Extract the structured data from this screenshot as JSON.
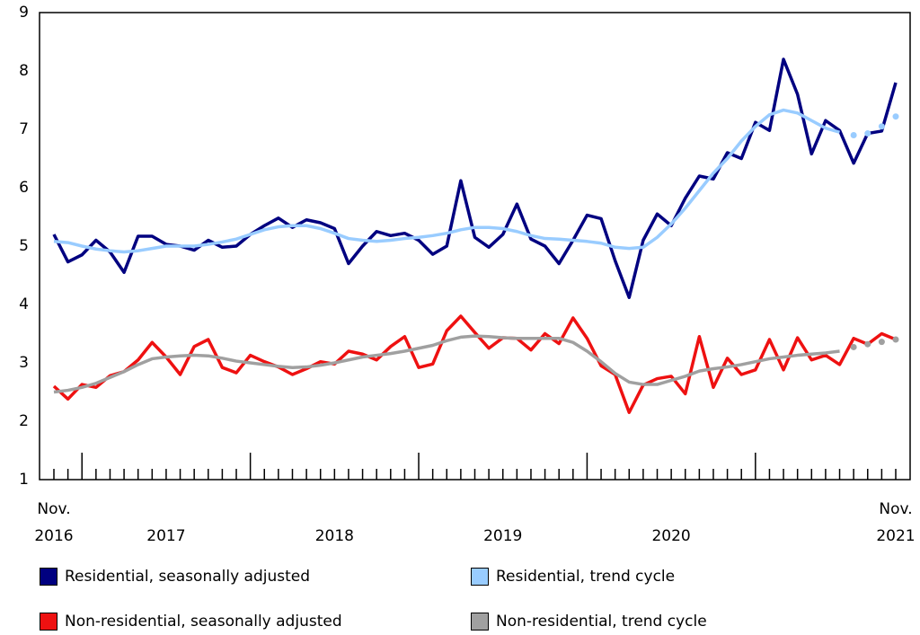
{
  "chart_data": {
    "type": "line",
    "categories": [
      "Nov.\n2016",
      null,
      null,
      null,
      null,
      null,
      null,
      null,
      "2017",
      null,
      null,
      null,
      null,
      null,
      null,
      null,
      null,
      null,
      null,
      null,
      "2018",
      null,
      null,
      null,
      null,
      null,
      null,
      null,
      null,
      null,
      null,
      null,
      "2019",
      null,
      null,
      null,
      null,
      null,
      null,
      null,
      null,
      null,
      null,
      null,
      "2020",
      null,
      null,
      null,
      null,
      null,
      null,
      null,
      null,
      null,
      null,
      null,
      null,
      null,
      null,
      null,
      "Nov.\n2021"
    ],
    "ylim": [
      1,
      9
    ],
    "yticks": [
      1,
      2,
      3,
      4,
      5,
      6,
      7,
      8,
      9
    ],
    "grid": false,
    "legend": "bottom",
    "series": [
      {
        "name": "Residential, seasonally adjusted",
        "color": "#000080",
        "values": [
          5.2,
          4.73,
          4.85,
          5.1,
          4.9,
          4.55,
          5.17,
          5.17,
          5.03,
          5.0,
          4.93,
          5.1,
          4.98,
          5.0,
          5.2,
          5.35,
          5.48,
          5.32,
          5.45,
          5.4,
          5.3,
          4.7,
          5.0,
          5.25,
          5.18,
          5.22,
          5.1,
          4.86,
          5.0,
          6.12,
          5.15,
          4.98,
          5.2,
          5.72,
          5.12,
          5.0,
          4.7,
          5.1,
          5.53,
          5.47,
          4.75,
          4.12,
          5.1,
          5.55,
          5.35,
          5.82,
          6.2,
          6.15,
          6.6,
          6.5,
          7.12,
          6.98,
          8.2,
          7.6,
          6.58,
          7.15,
          6.98,
          6.42,
          6.93,
          6.97,
          7.8
        ]
      },
      {
        "name": "Residential, trend cycle",
        "color": "#99ccff",
        "dotted_from": 57,
        "values": [
          5.08,
          5.06,
          5.0,
          4.95,
          4.92,
          4.9,
          4.92,
          4.96,
          5.0,
          5.0,
          5.0,
          5.03,
          5.07,
          5.12,
          5.2,
          5.28,
          5.33,
          5.35,
          5.35,
          5.3,
          5.22,
          5.13,
          5.1,
          5.08,
          5.1,
          5.13,
          5.15,
          5.18,
          5.22,
          5.28,
          5.32,
          5.32,
          5.3,
          5.25,
          5.18,
          5.13,
          5.12,
          5.1,
          5.08,
          5.05,
          4.98,
          4.96,
          4.98,
          5.15,
          5.38,
          5.65,
          5.95,
          6.25,
          6.5,
          6.8,
          7.05,
          7.25,
          7.33,
          7.28,
          7.15,
          7.02,
          6.95,
          6.9,
          6.93,
          7.05,
          7.22
        ]
      },
      {
        "name": "Non-residential, seasonally adjusted",
        "color": "#ee1111",
        "values": [
          2.6,
          2.38,
          2.63,
          2.58,
          2.78,
          2.85,
          3.05,
          3.35,
          3.1,
          2.8,
          3.28,
          3.4,
          2.92,
          2.83,
          3.13,
          3.02,
          2.93,
          2.8,
          2.9,
          3.02,
          2.98,
          3.2,
          3.15,
          3.05,
          3.28,
          3.45,
          2.92,
          2.98,
          3.55,
          3.8,
          3.52,
          3.25,
          3.43,
          3.42,
          3.22,
          3.5,
          3.33,
          3.77,
          3.42,
          2.95,
          2.8,
          2.15,
          2.62,
          2.73,
          2.77,
          2.47,
          3.45,
          2.58,
          3.08,
          2.8,
          2.88,
          3.4,
          2.88,
          3.43,
          3.05,
          3.13,
          2.97,
          3.42,
          3.32,
          3.5,
          3.4
        ]
      },
      {
        "name": "Non-residential, trend cycle",
        "color": "#a0a0a0",
        "dotted_from": 57,
        "values": [
          2.5,
          2.53,
          2.58,
          2.65,
          2.75,
          2.85,
          2.97,
          3.07,
          3.1,
          3.12,
          3.13,
          3.12,
          3.08,
          3.03,
          3.0,
          2.97,
          2.94,
          2.92,
          2.93,
          2.96,
          3.0,
          3.05,
          3.1,
          3.13,
          3.16,
          3.2,
          3.25,
          3.3,
          3.38,
          3.44,
          3.46,
          3.45,
          3.43,
          3.42,
          3.42,
          3.42,
          3.42,
          3.35,
          3.2,
          3.02,
          2.82,
          2.67,
          2.63,
          2.63,
          2.7,
          2.77,
          2.86,
          2.9,
          2.93,
          2.97,
          3.02,
          3.07,
          3.1,
          3.13,
          3.15,
          3.17,
          3.2,
          3.27,
          3.32,
          3.36,
          3.4
        ]
      }
    ]
  }
}
